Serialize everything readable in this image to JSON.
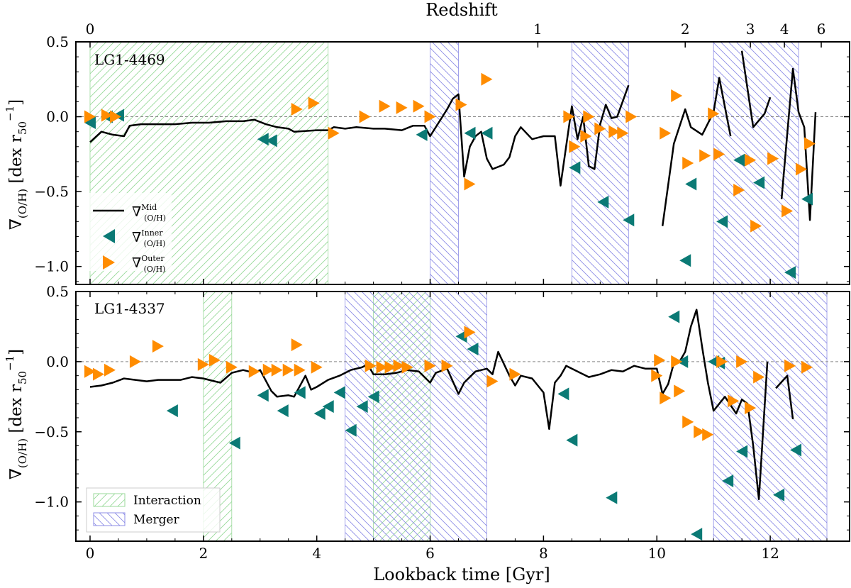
{
  "chart_data": {
    "type": "line",
    "xlabel": "Lookback time [Gyr]",
    "top_xlabel": "Redshift",
    "xlim": [
      -0.25,
      13.4
    ],
    "x_ticks": [
      0,
      2,
      4,
      6,
      8,
      10,
      12
    ],
    "redshift_ticks": [
      {
        "label": "0",
        "t": 0.0
      },
      {
        "label": "1",
        "t": 7.9
      },
      {
        "label": "2",
        "t": 10.5
      },
      {
        "label": "3",
        "t": 11.65
      },
      {
        "label": "4",
        "t": 12.25
      },
      {
        "label": "6",
        "t": 12.9
      }
    ],
    "ylabel": "∇(O/H) [dex r50−1]",
    "y_ticks": [
      0.5,
      0.0,
      -0.5,
      -1.0
    ],
    "y_tick_labels": [
      "0.5",
      "0.0",
      "−0.5",
      "−1.0"
    ],
    "colors": {
      "mid": "#000000",
      "inner": "#0b7a75",
      "outer": "#ff8c00",
      "interaction": "#99d99a",
      "merger": "#8c8ce6"
    },
    "legend_top": {
      "mid": "∇",
      "inner": "∇",
      "outer": "∇"
    },
    "legend_bottom": {
      "interaction": "Interaction",
      "merger": "Merger"
    },
    "panels": [
      {
        "name": "LG1-4469",
        "ylim": [
          -1.12,
          0.5
        ],
        "interaction": [
          [
            0.0,
            4.2
          ]
        ],
        "merger": [
          [
            6.0,
            6.5
          ],
          [
            8.5,
            9.5
          ],
          [
            11.0,
            12.5
          ]
        ],
        "mid_segments": [
          [
            [
              0.0,
              -0.17
            ],
            [
              0.2,
              -0.1
            ],
            [
              0.4,
              -0.12
            ],
            [
              0.6,
              -0.13
            ],
            [
              0.7,
              -0.06
            ],
            [
              0.9,
              -0.05
            ],
            [
              1.2,
              -0.05
            ],
            [
              1.5,
              -0.05
            ],
            [
              1.8,
              -0.04
            ],
            [
              2.1,
              -0.04
            ],
            [
              2.4,
              -0.03
            ],
            [
              2.7,
              -0.03
            ],
            [
              2.9,
              -0.02
            ],
            [
              3.1,
              -0.05
            ],
            [
              3.3,
              -0.07
            ],
            [
              3.5,
              -0.08
            ],
            [
              3.6,
              -0.1
            ],
            [
              4.0,
              -0.09
            ],
            [
              4.2,
              -0.09
            ],
            [
              4.3,
              -0.07
            ],
            [
              4.5,
              -0.08
            ],
            [
              4.7,
              -0.07
            ],
            [
              5.0,
              -0.08
            ],
            [
              5.2,
              -0.08
            ],
            [
              5.5,
              -0.09
            ],
            [
              5.7,
              -0.06
            ],
            [
              5.9,
              -0.06
            ],
            [
              6.0,
              -0.13
            ],
            [
              6.3,
              0.05
            ],
            [
              6.4,
              0.12
            ],
            [
              6.5,
              0.15
            ],
            [
              6.6,
              -0.4
            ],
            [
              6.7,
              -0.2
            ],
            [
              6.8,
              -0.13
            ],
            [
              6.9,
              -0.1
            ],
            [
              7.0,
              -0.28
            ],
            [
              7.1,
              -0.35
            ],
            [
              7.3,
              -0.32
            ],
            [
              7.4,
              -0.27
            ],
            [
              7.5,
              -0.13
            ],
            [
              7.6,
              -0.07
            ],
            [
              7.8,
              -0.15
            ],
            [
              8.0,
              -0.13
            ],
            [
              8.2,
              -0.13
            ],
            [
              8.3,
              -0.46
            ],
            [
              8.5,
              0.07
            ],
            [
              8.6,
              -0.15
            ],
            [
              8.7,
              0.0
            ],
            [
              8.8,
              -0.33
            ],
            [
              8.9,
              -0.35
            ],
            [
              9.0,
              -0.05
            ],
            [
              9.1,
              0.08
            ],
            [
              9.2,
              -0.01
            ],
            [
              9.3,
              0.0
            ],
            [
              9.5,
              0.21
            ]
          ],
          [
            [
              10.1,
              -0.73
            ],
            [
              10.3,
              -0.18
            ],
            [
              10.5,
              0.05
            ],
            [
              10.6,
              -0.07
            ],
            [
              10.8,
              -0.12
            ],
            [
              11.0,
              0.03
            ],
            [
              11.1,
              0.26
            ],
            [
              11.3,
              -0.13
            ]
          ],
          [
            [
              11.5,
              0.44
            ],
            [
              11.7,
              -0.07
            ],
            [
              11.9,
              0.02
            ],
            [
              12.0,
              0.13
            ]
          ],
          [
            [
              12.2,
              -0.55
            ],
            [
              12.4,
              0.32
            ],
            [
              12.5,
              0.03
            ],
            [
              12.6,
              -0.07
            ],
            [
              12.7,
              -0.69
            ],
            [
              12.8,
              0.03
            ]
          ]
        ],
        "inner": [
          [
            0.0,
            -0.04
          ],
          [
            0.3,
            0.0
          ],
          [
            0.5,
            0.01
          ],
          [
            3.05,
            -0.15
          ],
          [
            3.2,
            -0.16
          ],
          [
            5.85,
            -0.12
          ],
          [
            6.7,
            -0.11
          ],
          [
            7.0,
            -0.11
          ],
          [
            8.55,
            -0.34
          ],
          [
            9.05,
            -0.57
          ],
          [
            9.5,
            -0.69
          ],
          [
            10.6,
            -0.45
          ],
          [
            10.5,
            -0.96
          ],
          [
            11.15,
            -0.7
          ],
          [
            11.45,
            -0.29
          ],
          [
            11.8,
            -0.44
          ],
          [
            12.35,
            -1.04
          ],
          [
            12.65,
            -0.55
          ]
        ],
        "outer": [
          [
            0.0,
            0.0
          ],
          [
            0.3,
            0.01
          ],
          [
            0.45,
            0.0
          ],
          [
            3.65,
            0.05
          ],
          [
            3.95,
            0.09
          ],
          [
            4.3,
            -0.11
          ],
          [
            4.85,
            0.0
          ],
          [
            5.2,
            0.07
          ],
          [
            5.5,
            0.06
          ],
          [
            5.8,
            0.07
          ],
          [
            6.0,
            0.0
          ],
          [
            6.55,
            0.08
          ],
          [
            6.7,
            -0.45
          ],
          [
            7.0,
            0.25
          ],
          [
            8.45,
            0.0
          ],
          [
            8.55,
            -0.2
          ],
          [
            8.8,
            0.0
          ],
          [
            8.75,
            -0.13
          ],
          [
            9.0,
            -0.08
          ],
          [
            9.25,
            -0.1
          ],
          [
            9.4,
            -0.11
          ],
          [
            9.55,
            0.0
          ],
          [
            10.15,
            -0.11
          ],
          [
            10.35,
            0.14
          ],
          [
            10.55,
            -0.31
          ],
          [
            10.85,
            -0.26
          ],
          [
            11.0,
            0.02
          ],
          [
            11.1,
            -0.25
          ],
          [
            11.45,
            -0.49
          ],
          [
            11.65,
            -0.29
          ],
          [
            11.75,
            -0.73
          ],
          [
            12.05,
            -0.28
          ],
          [
            12.3,
            -0.63
          ],
          [
            12.55,
            -0.35
          ],
          [
            12.7,
            -0.18
          ]
        ]
      },
      {
        "name": "LG1-4337",
        "ylim": [
          -1.28,
          0.5
        ],
        "interaction": [
          [
            2.0,
            2.5
          ],
          [
            5.0,
            6.0
          ]
        ],
        "merger": [
          [
            4.5,
            7.0
          ],
          [
            11.0,
            13.0
          ]
        ],
        "mid_segments": [
          [
            [
              0.0,
              -0.18
            ],
            [
              0.2,
              -0.17
            ],
            [
              0.4,
              -0.15
            ],
            [
              0.6,
              -0.12
            ],
            [
              0.8,
              -0.13
            ],
            [
              1.0,
              -0.14
            ],
            [
              1.2,
              -0.13
            ],
            [
              1.4,
              -0.13
            ],
            [
              1.6,
              -0.13
            ],
            [
              1.8,
              -0.11
            ],
            [
              2.0,
              -0.12
            ],
            [
              2.2,
              -0.14
            ],
            [
              2.3,
              -0.15
            ],
            [
              2.5,
              -0.08
            ],
            [
              2.7,
              -0.06
            ],
            [
              2.9,
              -0.08
            ],
            [
              3.0,
              -0.06
            ],
            [
              3.2,
              -0.21
            ],
            [
              3.3,
              -0.25
            ],
            [
              3.5,
              -0.24
            ],
            [
              3.6,
              -0.25
            ],
            [
              3.8,
              -0.1
            ],
            [
              3.9,
              -0.2
            ],
            [
              4.0,
              -0.18
            ],
            [
              4.2,
              -0.13
            ],
            [
              4.4,
              -0.1
            ],
            [
              4.6,
              -0.06
            ],
            [
              4.8,
              -0.04
            ],
            [
              4.9,
              -0.02
            ],
            [
              5.0,
              -0.09
            ],
            [
              5.2,
              -0.09
            ],
            [
              5.4,
              -0.08
            ],
            [
              5.6,
              -0.06
            ],
            [
              5.8,
              -0.07
            ],
            [
              6.0,
              -0.15
            ],
            [
              6.1,
              -0.08
            ],
            [
              6.3,
              -0.05
            ],
            [
              6.5,
              -0.23
            ],
            [
              6.6,
              -0.15
            ],
            [
              6.8,
              -0.07
            ],
            [
              7.0,
              -0.05
            ],
            [
              7.1,
              -0.09
            ],
            [
              7.2,
              0.07
            ],
            [
              7.4,
              -0.1
            ],
            [
              7.5,
              -0.17
            ],
            [
              7.6,
              -0.1
            ],
            [
              7.8,
              -0.12
            ],
            [
              8.0,
              -0.22
            ],
            [
              8.1,
              -0.48
            ],
            [
              8.2,
              -0.15
            ],
            [
              8.3,
              -0.1
            ],
            [
              8.4,
              -0.03
            ],
            [
              8.6,
              -0.07
            ],
            [
              8.8,
              -0.11
            ],
            [
              9.0,
              -0.09
            ],
            [
              9.2,
              -0.06
            ],
            [
              9.4,
              -0.07
            ],
            [
              9.6,
              -0.03
            ],
            [
              9.8,
              -0.05
            ],
            [
              10.0,
              -0.05
            ],
            [
              10.1,
              -0.23
            ],
            [
              10.2,
              -0.16
            ],
            [
              10.3,
              -0.01
            ],
            [
              10.4,
              -0.0
            ],
            [
              10.5,
              0.07
            ],
            [
              10.6,
              0.25
            ],
            [
              10.7,
              0.37
            ],
            [
              10.8,
              0.1
            ],
            [
              10.9,
              -0.15
            ],
            [
              11.0,
              -0.35
            ],
            [
              11.2,
              -0.25
            ],
            [
              11.4,
              -0.37
            ],
            [
              11.5,
              -0.27
            ],
            [
              11.6,
              -0.3
            ],
            [
              11.7,
              -0.6
            ],
            [
              11.8,
              -0.98
            ],
            [
              11.95,
              0.0
            ]
          ],
          [
            [
              12.1,
              -0.19
            ],
            [
              12.3,
              -0.1
            ],
            [
              12.4,
              -0.41
            ]
          ]
        ],
        "inner": [
          [
            1.45,
            -0.35
          ],
          [
            2.55,
            -0.58
          ],
          [
            3.05,
            -0.24
          ],
          [
            3.4,
            -0.35
          ],
          [
            3.7,
            -0.22
          ],
          [
            4.05,
            -0.37
          ],
          [
            4.2,
            -0.32
          ],
          [
            4.4,
            -0.22
          ],
          [
            4.6,
            -0.49
          ],
          [
            4.8,
            -0.32
          ],
          [
            5.0,
            -0.25
          ],
          [
            6.55,
            0.18
          ],
          [
            6.75,
            0.09
          ],
          [
            8.35,
            -0.23
          ],
          [
            8.5,
            -0.56
          ],
          [
            9.2,
            -0.97
          ],
          [
            10.3,
            0.32
          ],
          [
            10.45,
            0.0
          ],
          [
            10.7,
            -1.23
          ],
          [
            11.0,
            0.0
          ],
          [
            11.1,
            -0.01
          ],
          [
            11.25,
            -0.85
          ],
          [
            11.5,
            -0.64
          ],
          [
            12.15,
            -0.95
          ],
          [
            12.45,
            -0.63
          ]
        ],
        "outer": [
          [
            0.0,
            -0.07
          ],
          [
            0.15,
            -0.09
          ],
          [
            0.35,
            -0.06
          ],
          [
            0.8,
            0.0
          ],
          [
            1.2,
            0.11
          ],
          [
            2.0,
            -0.02
          ],
          [
            2.2,
            0.01
          ],
          [
            2.5,
            -0.04
          ],
          [
            2.9,
            -0.07
          ],
          [
            3.15,
            -0.06
          ],
          [
            3.3,
            -0.06
          ],
          [
            3.5,
            -0.06
          ],
          [
            3.7,
            -0.06
          ],
          [
            3.65,
            0.12
          ],
          [
            4.0,
            -0.04
          ],
          [
            4.95,
            -0.03
          ],
          [
            5.15,
            -0.04
          ],
          [
            5.3,
            -0.04
          ],
          [
            5.45,
            -0.03
          ],
          [
            5.6,
            -0.04
          ],
          [
            6.0,
            -0.03
          ],
          [
            6.3,
            -0.03
          ],
          [
            6.7,
            0.21
          ],
          [
            7.1,
            -0.14
          ],
          [
            7.5,
            -0.09
          ],
          [
            10.0,
            -0.1
          ],
          [
            10.05,
            0.01
          ],
          [
            10.15,
            -0.26
          ],
          [
            10.35,
            0.0
          ],
          [
            10.4,
            -0.21
          ],
          [
            10.55,
            -0.43
          ],
          [
            10.75,
            -0.5
          ],
          [
            10.9,
            -0.52
          ],
          [
            11.15,
            0.0
          ],
          [
            11.35,
            -0.28
          ],
          [
            11.5,
            0.0
          ],
          [
            11.65,
            -0.33
          ],
          [
            11.8,
            -0.11
          ],
          [
            12.35,
            -0.03
          ],
          [
            12.65,
            -0.04
          ]
        ]
      }
    ]
  }
}
